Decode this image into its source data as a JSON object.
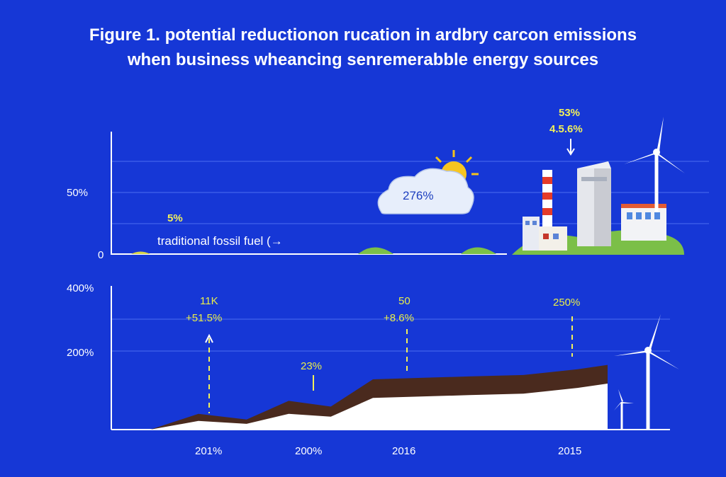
{
  "title_line1": "Figure 1. potential reductionon rucation in ardbry carcon emissions",
  "title_line2": "when business wheancing senremerabble energy sources",
  "chart_data": [
    {
      "type": "line",
      "yticks": [
        "50%",
        "0"
      ],
      "annotations": {
        "fossil_value": "5%",
        "fossil_label": "traditional fossil fuel (→",
        "cloud_value": "276%",
        "renew_value_1": "53%",
        "renew_value_2": "4.5.6%"
      }
    },
    {
      "type": "area",
      "yticks": [
        "400%",
        "200%"
      ],
      "ylim": [
        0,
        500
      ],
      "categories": [
        "201%",
        "200%",
        "2016",
        "2015"
      ],
      "x": [
        0,
        0.8,
        1.6,
        2.3,
        3.0,
        3.7,
        4.5,
        5.3,
        6.2,
        7.1,
        7.6
      ],
      "series": [
        {
          "values": [
            0,
            55,
            35,
            100,
            80,
            175,
            180,
            185,
            190,
            210,
            225
          ]
        },
        {
          "values": [
            0,
            30,
            20,
            55,
            45,
            110,
            115,
            120,
            125,
            145,
            160
          ]
        }
      ],
      "annotations": [
        {
          "line1": "11K",
          "line2": "+51.5%"
        },
        {
          "line1": "23%"
        },
        {
          "line1": "50",
          "line2": "+8.6%"
        },
        {
          "line1": "250%"
        }
      ],
      "colors": {
        "upper": "#4a2a1e",
        "lower": "#ffffff"
      }
    }
  ]
}
